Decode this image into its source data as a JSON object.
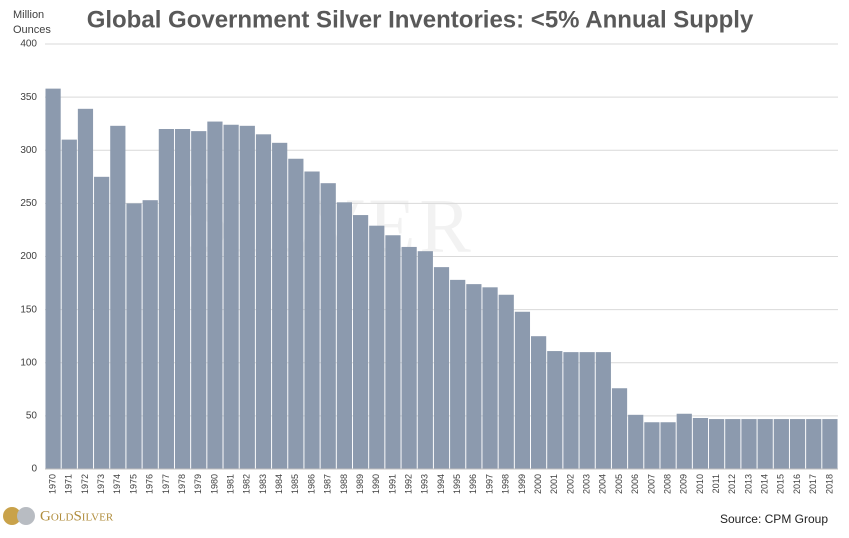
{
  "chart_data": {
    "type": "bar",
    "title": "Global Government Silver Inventories: <5% Annual Supply",
    "y_label": [
      "Million",
      "Ounces"
    ],
    "source": "Source: CPM Group",
    "logo": "GoldSilver",
    "watermark": "Silver",
    "categories": [
      "1970",
      "1971",
      "1972",
      "1973",
      "1974",
      "1975",
      "1976",
      "1977",
      "1978",
      "1979",
      "1980",
      "1981",
      "1982",
      "1983",
      "1984",
      "1985",
      "1986",
      "1987",
      "1988",
      "1989",
      "1990",
      "1991",
      "1992",
      "1993",
      "1994",
      "1995",
      "1996",
      "1997",
      "1998",
      "1999",
      "2000",
      "2001",
      "2002",
      "2003",
      "2004",
      "2005",
      "2006",
      "2007",
      "2008",
      "2009",
      "2010",
      "2011",
      "2012",
      "2013",
      "2014",
      "2015",
      "2016",
      "2017",
      "2018"
    ],
    "values": [
      358,
      310,
      339,
      275,
      323,
      250,
      253,
      320,
      320,
      318,
      327,
      324,
      323,
      315,
      307,
      292,
      280,
      269,
      251,
      239,
      229,
      220,
      209,
      205,
      190,
      178,
      174,
      171,
      164,
      148,
      125,
      111,
      110,
      110,
      110,
      76,
      51,
      44,
      44,
      52,
      48,
      47,
      47,
      47,
      47,
      47,
      47,
      47,
      47
    ],
    "color": "#8c9aae",
    "ylim": [
      0,
      400
    ],
    "yticks": [
      0,
      50,
      100,
      150,
      200,
      250,
      300,
      350,
      400
    ],
    "grid": true
  }
}
